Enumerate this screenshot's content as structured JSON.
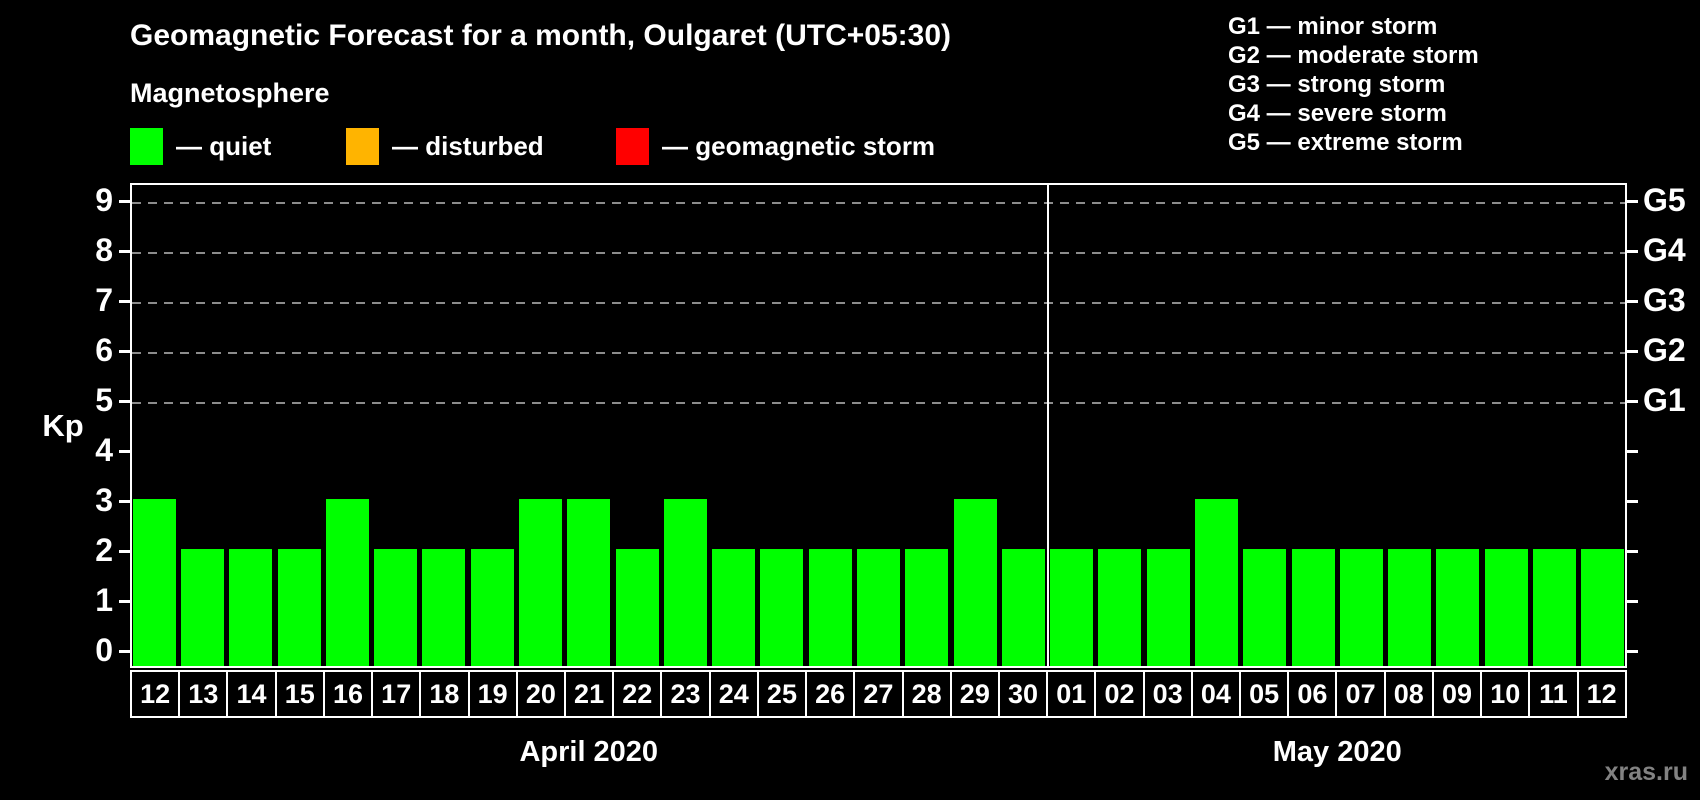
{
  "title": "Geomagnetic Forecast for a month, Oulgaret (UTC+05:30)",
  "subtitle": "Magnetosphere",
  "legend": {
    "items": [
      {
        "key": "quiet",
        "label": "— quiet",
        "color": "#00ff00"
      },
      {
        "key": "disturbed",
        "label": "— disturbed",
        "color": "#ffb400"
      },
      {
        "key": "storm",
        "label": "— geomagnetic storm",
        "color": "#ff0000"
      }
    ]
  },
  "g_legend": [
    "G1 — minor storm",
    "G2 — moderate storm",
    "G3 — strong storm",
    "G4 — severe storm",
    "G5 — extreme storm"
  ],
  "watermark": "xras.ru",
  "chart_data": {
    "type": "bar",
    "title": "Geomagnetic Forecast for a month, Oulgaret (UTC+05:30)",
    "ylabel": "Kp",
    "ylim": [
      0,
      9
    ],
    "yticks": [
      0,
      1,
      2,
      3,
      4,
      5,
      6,
      7,
      8,
      9
    ],
    "right_axis": [
      {
        "label": "G1",
        "kp": 5
      },
      {
        "label": "G2",
        "kp": 6
      },
      {
        "label": "G3",
        "kp": 7
      },
      {
        "label": "G4",
        "kp": 8
      },
      {
        "label": "G5",
        "kp": 9
      }
    ],
    "grid": {
      "dashed_at_kp": [
        5,
        6,
        7,
        8,
        9
      ],
      "legend_position": "top"
    },
    "months": [
      {
        "label": "April 2020",
        "days": 19
      },
      {
        "label": "May 2020",
        "days": 12
      }
    ],
    "categories": [
      "12",
      "13",
      "14",
      "15",
      "16",
      "17",
      "18",
      "19",
      "20",
      "21",
      "22",
      "23",
      "24",
      "25",
      "26",
      "27",
      "28",
      "29",
      "30",
      "01",
      "02",
      "03",
      "04",
      "05",
      "06",
      "07",
      "08",
      "09",
      "10",
      "11",
      "12"
    ],
    "values": [
      3,
      2,
      2,
      2,
      3,
      2,
      2,
      2,
      3,
      3,
      2,
      3,
      2,
      2,
      2,
      2,
      2,
      3,
      2,
      2,
      2,
      2,
      3,
      2,
      2,
      2,
      2,
      2,
      2,
      2,
      2
    ],
    "color_rule": {
      "quiet_kp_max": 3,
      "disturbed_kp": 4,
      "storm_kp_min": 5
    },
    "colors": {
      "quiet": "#00ff00",
      "disturbed": "#ffb400",
      "storm": "#ff0000",
      "grid": "#8c8c8c",
      "axis": "#ffffff"
    }
  }
}
